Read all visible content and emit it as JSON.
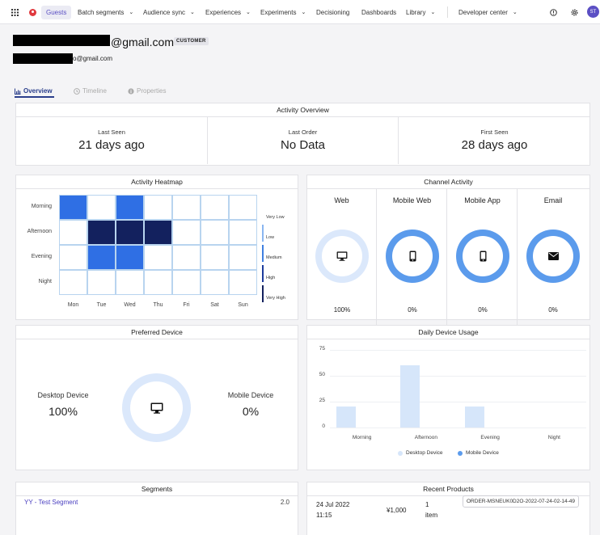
{
  "nav": {
    "guests": "Guests",
    "batch_segments": "Batch segments",
    "audience_sync": "Audience sync",
    "experiences": "Experiences",
    "experiments": "Experiments",
    "decisioning": "Decisioning",
    "dashboards": "Dashboards",
    "library": "Library",
    "developer_center": "Developer center",
    "avatar_initials": "ST"
  },
  "profile": {
    "email_big_suffix": "@gmail.com",
    "badge": "CUSTOMER",
    "email_small_suffix": "o@gmail.com"
  },
  "tabs": {
    "overview": "Overview",
    "timeline": "Timeline",
    "properties": "Properties"
  },
  "activity_overview": {
    "title": "Activity Overview",
    "last_seen_label": "Last Seen",
    "last_seen_value": "21 days ago",
    "last_order_label": "Last Order",
    "last_order_value": "No Data",
    "first_seen_label": "First Seen",
    "first_seen_value": "28 days ago"
  },
  "heatmap": {
    "title": "Activity Heatmap",
    "rows": [
      "Morning",
      "Afternoon",
      "Evening",
      "Night"
    ],
    "cols": [
      "Mon",
      "Tue",
      "Wed",
      "Thu",
      "Fri",
      "Sat",
      "Sun"
    ],
    "legend": [
      "Very Low",
      "Low",
      "Medium",
      "High",
      "Very High"
    ],
    "colors": {
      "empty": "#ffffff",
      "medium": "#2f6fe4",
      "very_high": "#13215e"
    },
    "levels": [
      [
        "medium",
        "empty",
        "medium",
        "empty",
        "empty",
        "empty",
        "empty"
      ],
      [
        "empty",
        "very_high",
        "very_high",
        "very_high",
        "empty",
        "empty",
        "empty"
      ],
      [
        "empty",
        "medium",
        "medium",
        "empty",
        "empty",
        "empty",
        "empty"
      ],
      [
        "empty",
        "empty",
        "empty",
        "empty",
        "empty",
        "empty",
        "empty"
      ]
    ]
  },
  "channel_activity": {
    "title": "Channel Activity",
    "channels": [
      {
        "name": "Web",
        "pct": "100%",
        "icon": "desktop-icon",
        "ring": "#dbe8fb"
      },
      {
        "name": "Mobile Web",
        "pct": "0%",
        "icon": "mobile-icon",
        "ring": "#5b9bec"
      },
      {
        "name": "Mobile App",
        "pct": "0%",
        "icon": "mobile-icon",
        "ring": "#5b9bec"
      },
      {
        "name": "Email",
        "pct": "0%",
        "icon": "mail-icon",
        "ring": "#5b9bec"
      }
    ]
  },
  "preferred_device": {
    "title": "Preferred Device",
    "desktop_label": "Desktop Device",
    "desktop_value": "100%",
    "mobile_label": "Mobile Device",
    "mobile_value": "0%"
  },
  "daily_device_usage": {
    "title": "Daily Device Usage",
    "legend_desktop": "Desktop Device",
    "legend_mobile": "Mobile Device",
    "color_desktop": "#d6e6fa",
    "color_mobile": "#5b9bec"
  },
  "chart_data": {
    "type": "bar",
    "categories": [
      "Morning",
      "Afternoon",
      "Evening",
      "Night"
    ],
    "series": [
      {
        "name": "Desktop Device",
        "values": [
          20,
          60,
          20,
          0
        ]
      },
      {
        "name": "Mobile Device",
        "values": [
          0,
          0,
          0,
          0
        ]
      }
    ],
    "yticks": [
      0,
      25,
      50,
      75
    ],
    "ylim": [
      0,
      75
    ],
    "legend": "bottom"
  },
  "segments": {
    "title": "Segments",
    "items": [
      {
        "name": "YY - Test Segment",
        "value": "2.0"
      }
    ]
  },
  "recent_products": {
    "title": "Recent Products",
    "date": "24 Jul 2022",
    "time": "11:15",
    "price": "¥1,000",
    "qty": "1",
    "qty_unit": "item",
    "order_id": "ORDER-MSNEUK0D2O-2022-07-24-02-14-49"
  }
}
